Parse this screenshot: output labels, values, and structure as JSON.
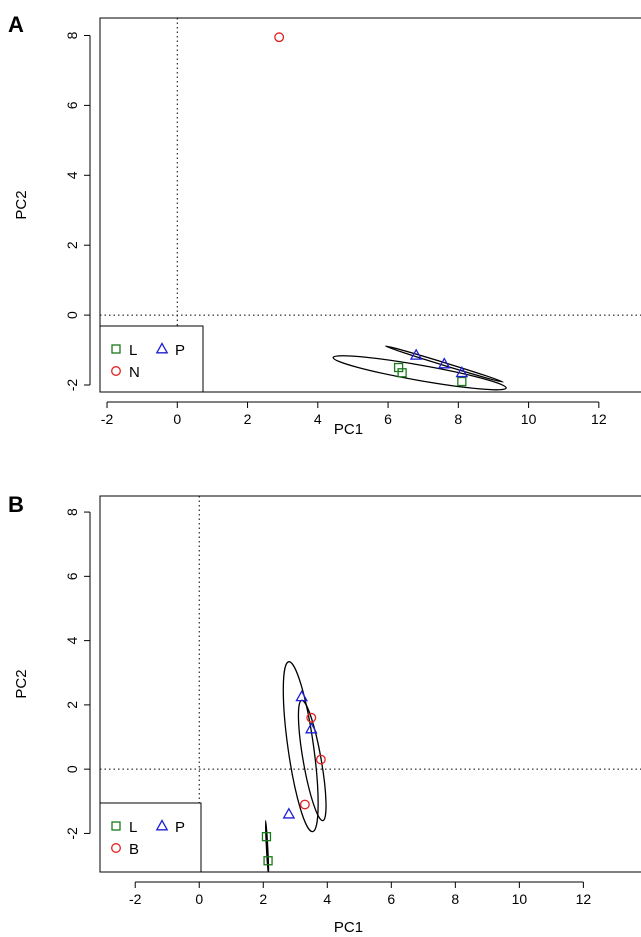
{
  "chart_data": [
    {
      "type": "scatter",
      "panel_label": "A",
      "xlabel": "PC1",
      "ylabel": "PC2",
      "xlim": [
        -2.2,
        13.2
      ],
      "ylim": [
        -2.2,
        8.5
      ],
      "xticks": [
        -2,
        0,
        2,
        4,
        6,
        8,
        10,
        12
      ],
      "yticks": [
        -2,
        0,
        2,
        4,
        6,
        8
      ],
      "grid": false,
      "reference_lines": {
        "x": 0,
        "y": 0
      },
      "legend": {
        "placement": "bottom-left",
        "entries": [
          {
            "label": "L",
            "marker": "square",
            "color": "#1a7a1a"
          },
          {
            "label": "P",
            "marker": "triangle",
            "color": "#1f1fd6"
          },
          {
            "label": "N",
            "marker": "circle",
            "color": "#e02020"
          }
        ]
      },
      "series": [
        {
          "name": "L",
          "marker": "square",
          "color": "#1a7a1a",
          "points": [
            [
              6.3,
              -1.5
            ],
            [
              6.4,
              -1.65
            ],
            [
              8.1,
              -1.9
            ]
          ]
        },
        {
          "name": "P",
          "marker": "triangle",
          "color": "#1f1fd6",
          "points": [
            [
              6.8,
              -1.15
            ],
            [
              7.6,
              -1.4
            ],
            [
              8.1,
              -1.65
            ]
          ]
        },
        {
          "name": "N",
          "marker": "circle",
          "color": "#e02020",
          "points": [
            [
              2.9,
              7.95
            ]
          ]
        }
      ],
      "ellipses": [
        {
          "group": "L",
          "cx": 6.9,
          "cy": -1.65,
          "rx": 2.5,
          "ry": 0.22,
          "angle_deg": -10
        },
        {
          "group": "P",
          "cx": 7.6,
          "cy": -1.4,
          "rx": 1.75,
          "ry": 0.04,
          "angle_deg": -17
        }
      ]
    },
    {
      "type": "scatter",
      "panel_label": "B",
      "xlabel": "PC1",
      "ylabel": "PC2",
      "xlim": [
        -3.1,
        13.8
      ],
      "ylim": [
        -3.2,
        8.5
      ],
      "xticks": [
        -2,
        0,
        2,
        4,
        6,
        8,
        10,
        12
      ],
      "yticks": [
        -2,
        0,
        2,
        4,
        6,
        8
      ],
      "grid": false,
      "reference_lines": {
        "x": 0,
        "y": 0
      },
      "legend": {
        "placement": "bottom-left",
        "entries": [
          {
            "label": "L",
            "marker": "square",
            "color": "#1a7a1a"
          },
          {
            "label": "P",
            "marker": "triangle",
            "color": "#1f1fd6"
          },
          {
            "label": "B",
            "marker": "circle",
            "color": "#e02020"
          }
        ]
      },
      "series": [
        {
          "name": "L",
          "marker": "square",
          "color": "#1a7a1a",
          "points": [
            [
              2.1,
              -2.1
            ],
            [
              2.15,
              -2.85
            ]
          ]
        },
        {
          "name": "P",
          "marker": "triangle",
          "color": "#1f1fd6",
          "points": [
            [
              3.2,
              2.25
            ],
            [
              3.5,
              1.25
            ],
            [
              2.8,
              -1.4
            ]
          ]
        },
        {
          "name": "B",
          "marker": "circle",
          "color": "#e02020",
          "points": [
            [
              3.5,
              1.6
            ],
            [
              3.8,
              0.3
            ],
            [
              3.3,
              -1.1
            ]
          ]
        }
      ],
      "ellipses": [
        {
          "group": "P",
          "cx": 3.17,
          "cy": 0.7,
          "rx": 0.4,
          "ry": 2.67,
          "angle_deg": 8
        },
        {
          "group": "B",
          "cx": 3.53,
          "cy": 0.27,
          "rx": 0.28,
          "ry": 1.9,
          "angle_deg": 10
        },
        {
          "group": "L",
          "cx": 2.12,
          "cy": -2.45,
          "rx": 0.02,
          "ry": 0.85,
          "angle_deg": 3
        }
      ]
    }
  ]
}
